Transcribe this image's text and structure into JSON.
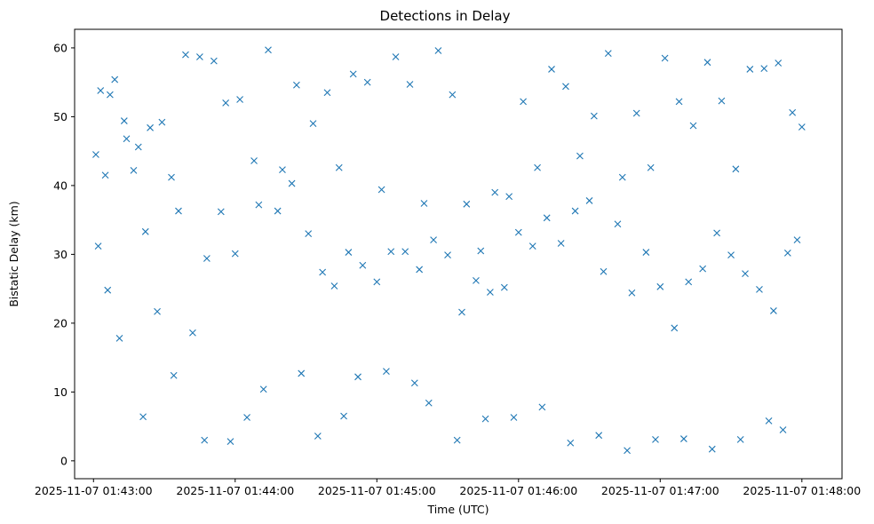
{
  "chart_data": {
    "type": "scatter",
    "title": "Detections in Delay",
    "xlabel": "Time (UTC)",
    "ylabel": "Bistatic Delay (km)",
    "marker": "x",
    "color": "#1f77b4",
    "grid": false,
    "legend": false,
    "xlim": [
      "2025-11-07 01:42:52",
      "2025-11-07 01:48:17"
    ],
    "ylim": [
      -2.6,
      62.7
    ],
    "x_ticks": [
      "2025-11-07 01:43:00",
      "2025-11-07 01:44:00",
      "2025-11-07 01:45:00",
      "2025-11-07 01:46:00",
      "2025-11-07 01:47:00",
      "2025-11-07 01:48:00"
    ],
    "y_ticks": [
      0,
      10,
      20,
      30,
      40,
      50,
      60
    ],
    "series": [
      {
        "x": [
          "2025-11-07 01:43:01",
          "2025-11-07 01:43:03",
          "2025-11-07 01:43:05",
          "2025-11-07 01:43:07",
          "2025-11-07 01:43:09",
          "2025-11-07 01:43:13",
          "2025-11-07 01:43:14",
          "2025-11-07 01:43:17",
          "2025-11-07 01:43:19",
          "2025-11-07 01:43:24",
          "2025-11-07 01:43:29",
          "2025-11-07 01:43:33",
          "2025-11-07 01:43:39",
          "2025-11-07 01:43:45",
          "2025-11-07 01:43:51",
          "2025-11-07 01:43:56",
          "2025-11-07 01:44:02",
          "2025-11-07 01:44:08",
          "2025-11-07 01:44:14",
          "2025-11-07 01:44:20",
          "2025-11-07 01:44:26",
          "2025-11-07 01:44:33",
          "2025-11-07 01:44:39",
          "2025-11-07 01:44:44",
          "2025-11-07 01:44:50",
          "2025-11-07 01:44:56",
          "2025-11-07 01:45:02",
          "2025-11-07 01:45:08",
          "2025-11-07 01:45:14",
          "2025-11-07 01:45:20",
          "2025-11-07 01:45:26",
          "2025-11-07 01:45:32",
          "2025-11-07 01:45:38",
          "2025-11-07 01:45:44",
          "2025-11-07 01:45:50",
          "2025-11-07 01:45:56",
          "2025-11-07 01:46:02",
          "2025-11-07 01:46:08",
          "2025-11-07 01:46:14",
          "2025-11-07 01:46:20",
          "2025-11-07 01:46:26",
          "2025-11-07 01:46:32",
          "2025-11-07 01:46:38",
          "2025-11-07 01:46:44",
          "2025-11-07 01:46:50",
          "2025-11-07 01:46:56",
          "2025-11-07 01:47:02",
          "2025-11-07 01:47:08",
          "2025-11-07 01:47:14",
          "2025-11-07 01:47:20",
          "2025-11-07 01:47:26",
          "2025-11-07 01:47:32",
          "2025-11-07 01:47:38",
          "2025-11-07 01:47:44",
          "2025-11-07 01:47:50",
          "2025-11-07 01:47:56",
          "2025-11-07 01:48:00",
          "2025-11-07 01:43:02",
          "2025-11-07 01:43:06",
          "2025-11-07 01:43:11",
          "2025-11-07 01:43:22",
          "2025-11-07 01:43:27",
          "2025-11-07 01:43:36",
          "2025-11-07 01:43:42",
          "2025-11-07 01:43:48",
          "2025-11-07 01:43:54",
          "2025-11-07 01:44:00",
          "2025-11-07 01:44:10",
          "2025-11-07 01:44:18",
          "2025-11-07 01:44:24",
          "2025-11-07 01:44:31",
          "2025-11-07 01:44:37",
          "2025-11-07 01:44:42",
          "2025-11-07 01:44:48",
          "2025-11-07 01:44:54",
          "2025-11-07 01:45:00",
          "2025-11-07 01:45:06",
          "2025-11-07 01:45:12",
          "2025-11-07 01:45:18",
          "2025-11-07 01:45:24",
          "2025-11-07 01:45:30",
          "2025-11-07 01:45:36",
          "2025-11-07 01:45:42",
          "2025-11-07 01:45:48",
          "2025-11-07 01:45:54",
          "2025-11-07 01:46:00",
          "2025-11-07 01:46:06",
          "2025-11-07 01:46:12",
          "2025-11-07 01:46:18",
          "2025-11-07 01:46:24",
          "2025-11-07 01:46:30",
          "2025-11-07 01:46:36",
          "2025-11-07 01:46:42",
          "2025-11-07 01:46:48",
          "2025-11-07 01:46:54",
          "2025-11-07 01:47:00",
          "2025-11-07 01:47:06",
          "2025-11-07 01:47:12",
          "2025-11-07 01:47:18",
          "2025-11-07 01:47:24",
          "2025-11-07 01:47:30",
          "2025-11-07 01:47:36",
          "2025-11-07 01:47:42",
          "2025-11-07 01:47:48",
          "2025-11-07 01:47:54",
          "2025-11-07 01:47:58",
          "2025-11-07 01:43:21",
          "2025-11-07 01:43:34",
          "2025-11-07 01:43:47",
          "2025-11-07 01:43:58",
          "2025-11-07 01:44:05",
          "2025-11-07 01:44:12",
          "2025-11-07 01:44:28",
          "2025-11-07 01:44:35",
          "2025-11-07 01:44:46",
          "2025-11-07 01:44:52",
          "2025-11-07 01:45:04",
          "2025-11-07 01:45:16",
          "2025-11-07 01:45:22",
          "2025-11-07 01:45:34",
          "2025-11-07 01:45:46",
          "2025-11-07 01:45:58",
          "2025-11-07 01:46:10",
          "2025-11-07 01:46:22",
          "2025-11-07 01:46:34",
          "2025-11-07 01:46:46",
          "2025-11-07 01:46:58",
          "2025-11-07 01:47:10",
          "2025-11-07 01:47:22",
          "2025-11-07 01:47:34",
          "2025-11-07 01:47:46",
          "2025-11-07 01:47:52"
        ],
        "y": [
          44.5,
          53.8,
          41.5,
          53.2,
          55.4,
          49.4,
          46.8,
          42.2,
          45.6,
          48.4,
          49.2,
          41.2,
          59.0,
          58.7,
          58.1,
          52.0,
          52.5,
          43.6,
          59.7,
          42.3,
          54.6,
          49.0,
          53.5,
          42.6,
          56.2,
          55.0,
          39.4,
          58.7,
          54.7,
          37.4,
          59.6,
          53.2,
          37.3,
          30.5,
          39.0,
          38.4,
          52.2,
          42.6,
          56.9,
          54.4,
          44.3,
          50.1,
          59.2,
          41.2,
          50.5,
          42.6,
          58.5,
          52.2,
          48.7,
          57.9,
          52.3,
          42.4,
          56.9,
          57.0,
          57.8,
          50.6,
          48.5,
          31.2,
          24.8,
          17.8,
          33.3,
          21.7,
          36.3,
          18.6,
          29.4,
          36.2,
          30.1,
          37.2,
          36.3,
          40.3,
          33.0,
          27.4,
          25.4,
          30.3,
          28.4,
          26.0,
          30.4,
          30.4,
          27.8,
          32.1,
          29.9,
          21.6,
          26.2,
          24.5,
          25.2,
          33.2,
          31.2,
          35.3,
          31.6,
          36.3,
          37.8,
          27.5,
          34.4,
          24.4,
          30.3,
          25.3,
          19.3,
          26.0,
          27.9,
          33.1,
          29.9,
          27.2,
          24.9,
          21.8,
          30.2,
          32.1,
          6.4,
          12.4,
          3.0,
          2.8,
          6.3,
          10.4,
          12.7,
          3.6,
          6.5,
          12.2,
          13.0,
          11.3,
          8.4,
          3.0,
          6.1,
          6.3,
          7.8,
          2.6,
          3.7,
          1.5,
          3.1,
          3.2,
          1.7,
          3.1,
          5.8,
          4.5
        ]
      }
    ]
  }
}
